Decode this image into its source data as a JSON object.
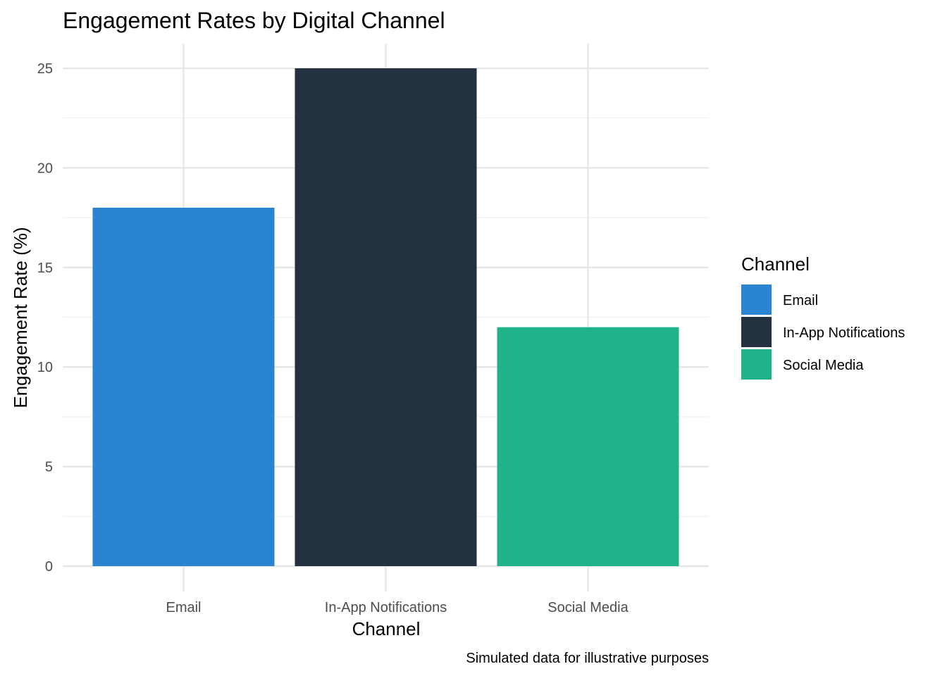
{
  "chart_data": {
    "type": "bar",
    "title": "Engagement Rates by Digital Channel",
    "xlabel": "Channel",
    "ylabel": "Engagement Rate (%)",
    "caption": "Simulated data for illustrative purposes",
    "categories": [
      "Email",
      "In-App Notifications",
      "Social Media"
    ],
    "values": [
      18,
      25,
      12
    ],
    "colors": [
      "#2b84d1",
      "#233140",
      "#20b389"
    ],
    "ylim": [
      0,
      25
    ],
    "yticks": [
      0,
      5,
      10,
      15,
      20,
      25
    ],
    "grid": true,
    "legend": {
      "title": "Channel",
      "position": "right",
      "items": [
        {
          "label": "Email",
          "color": "#2b84d1"
        },
        {
          "label": "In-App Notifications",
          "color": "#233140"
        },
        {
          "label": "Social Media",
          "color": "#20b389"
        }
      ]
    }
  }
}
